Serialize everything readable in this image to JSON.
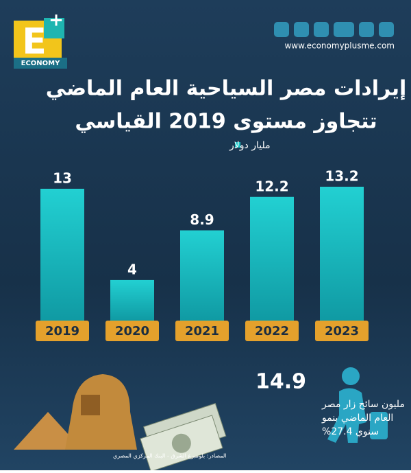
{
  "chart_data": {
    "type": "bar",
    "title": "إيرادات مصر السياحية العام الماضي",
    "subtitle": "تتجاوز مستوى 2019 القياسي",
    "unit": "مليار دولار",
    "categories": [
      "2019",
      "2020",
      "2021",
      "2022",
      "2023"
    ],
    "values": [
      13,
      4,
      8.9,
      12.2,
      13.2
    ],
    "color": "#1cc3c6",
    "category_color": "#e4a12c"
  },
  "brand": {
    "logo_letter": "E",
    "logo_text": "ECONOMY",
    "website": "www.economyplusme.com"
  },
  "stat": {
    "value": 14.9,
    "lines": [
      "مليون سائح زار مصر",
      "العام الماضي بنمو",
      "سنوي 27.4%"
    ]
  },
  "source": "المصادر: بلومبرغ الشرق - البنك المركزي المصري"
}
